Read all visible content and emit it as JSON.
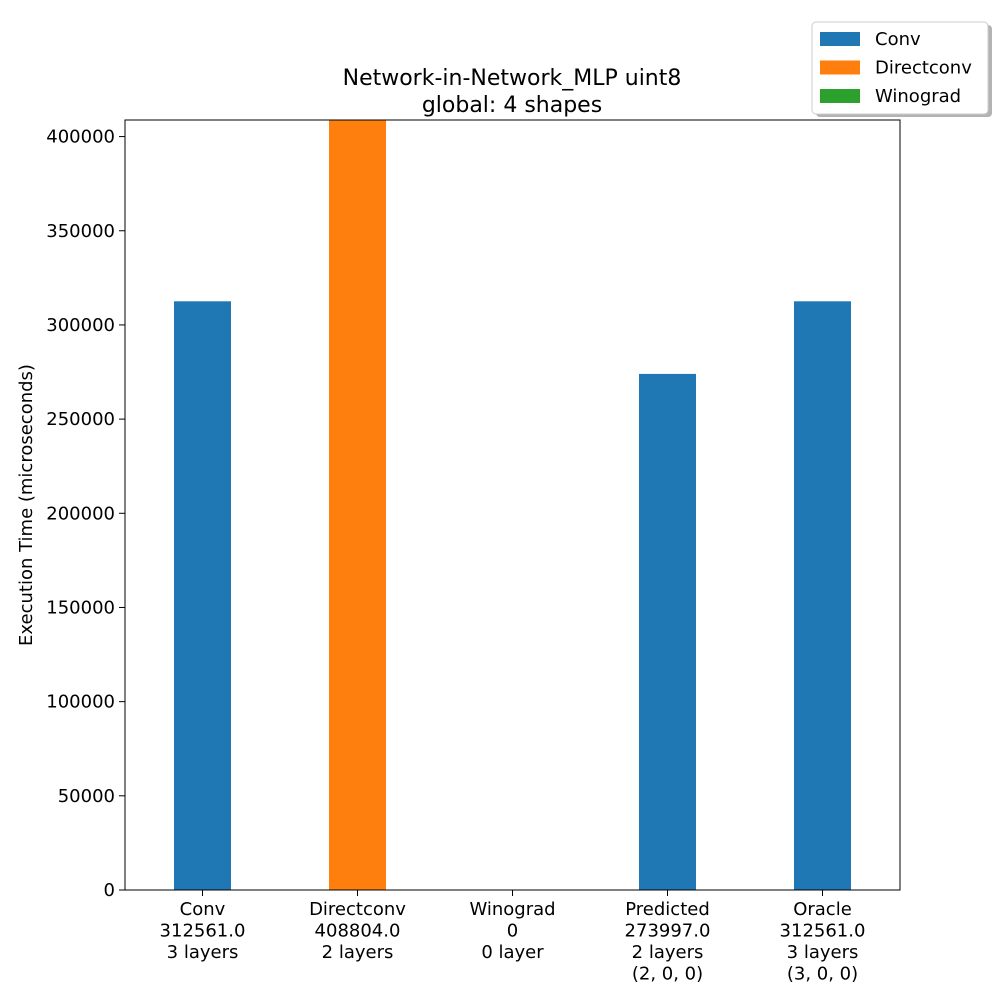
{
  "chart_data": {
    "type": "bar",
    "title": "Network-in-Network_MLP uint8",
    "subtitle": "global: 4 shapes",
    "xlabel": "",
    "ylabel": "Execution Time (microseconds)",
    "ylim": [
      0,
      408804
    ],
    "yticks": [
      0,
      50000,
      100000,
      150000,
      200000,
      250000,
      300000,
      350000,
      400000
    ],
    "grid": false,
    "legend_position": "top-right",
    "series": [
      {
        "name": "Conv",
        "color": "#1f77b4",
        "values": [
          312561,
          0,
          0,
          273997,
          312561
        ]
      },
      {
        "name": "Directconv",
        "color": "#ff7f0e",
        "values": [
          0,
          408804,
          0,
          0,
          0
        ]
      },
      {
        "name": "Winograd",
        "color": "#2ca02c",
        "values": [
          0,
          0,
          0,
          0,
          0
        ]
      }
    ],
    "categories": [
      {
        "lines": [
          "Conv",
          "312561.0",
          "3 layers"
        ]
      },
      {
        "lines": [
          "Directconv",
          "408804.0",
          "2 layers"
        ]
      },
      {
        "lines": [
          "Winograd",
          "0",
          "0 layer"
        ]
      },
      {
        "lines": [
          "Predicted",
          "273997.0",
          "2 layers",
          "(2, 0, 0)"
        ]
      },
      {
        "lines": [
          "Oracle",
          "312561.0",
          "3 layers",
          "(3, 0, 0)"
        ]
      }
    ]
  }
}
